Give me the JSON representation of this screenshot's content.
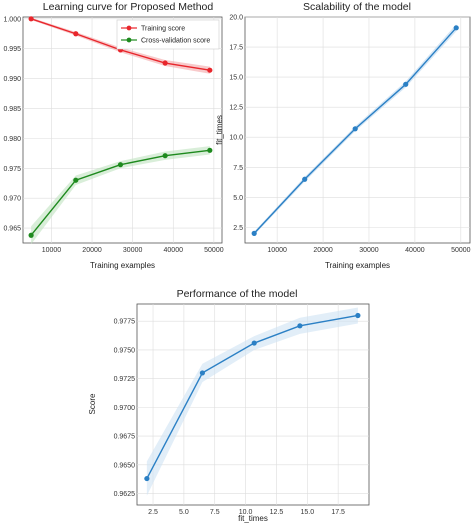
{
  "chart_data": [
    {
      "id": "learning",
      "type": "line",
      "title": "Learning curve for Proposed Method",
      "xlabel": "Training examples",
      "ylabel": "",
      "x": [
        5000,
        16000,
        27000,
        38000,
        49000
      ],
      "xlim": [
        3000,
        52000
      ],
      "xticks": [
        10000,
        20000,
        30000,
        40000,
        50000
      ],
      "xtick_labels": [
        "10000",
        "20000",
        "30000",
        "40000",
        "50000"
      ],
      "ylim": [
        0.9625,
        1.0003
      ],
      "yticks": [
        0.965,
        0.97,
        0.975,
        0.98,
        0.985,
        0.99,
        0.995,
        1.0
      ],
      "ytick_labels": [
        "0.965",
        "0.970",
        "0.975",
        "0.980",
        "0.985",
        "0.990",
        "0.995",
        "1.000"
      ],
      "grid": true,
      "legend_position": "top-right",
      "series": [
        {
          "name": "Training score",
          "color": "#e8262c",
          "band_color": "#f4a6a8",
          "values": [
            1.0,
            0.9975,
            0.9948,
            0.9926,
            0.9914
          ],
          "band": [
            0.0002,
            0.0003,
            0.0004,
            0.0005,
            0.0006
          ]
        },
        {
          "name": "Cross-validation score",
          "color": "#1e8a1e",
          "band_color": "#bfe3bf",
          "values": [
            0.9638,
            0.973,
            0.9756,
            0.9771,
            0.978
          ],
          "band": [
            0.0015,
            0.0008,
            0.0006,
            0.0007,
            0.0007
          ]
        }
      ]
    },
    {
      "id": "scalability",
      "type": "line",
      "title": "Scalability of the model",
      "xlabel": "Training examples",
      "ylabel": "fit_times",
      "x": [
        5000,
        16000,
        27000,
        38000,
        49000
      ],
      "xlim": [
        3000,
        52000
      ],
      "xticks": [
        10000,
        20000,
        30000,
        40000,
        50000
      ],
      "xtick_labels": [
        "10000",
        "20000",
        "30000",
        "40000",
        "50000"
      ],
      "ylim": [
        1.2,
        20.0
      ],
      "yticks": [
        2.5,
        5.0,
        7.5,
        10.0,
        12.5,
        15.0,
        17.5,
        20.0
      ],
      "ytick_labels": [
        "2.5",
        "5.0",
        "7.5",
        "10.0",
        "12.5",
        "15.0",
        "17.5",
        "20.0"
      ],
      "grid": true,
      "series": [
        {
          "color": "#2b80c5",
          "band_color": "#b9d6ef",
          "values": [
            2.0,
            6.5,
            10.7,
            14.4,
            19.1
          ],
          "band": [
            0.15,
            0.2,
            0.2,
            0.25,
            0.3
          ]
        }
      ]
    },
    {
      "id": "performance",
      "type": "line",
      "title": "Performance of the model",
      "xlabel": "fit_times",
      "ylabel": "Score",
      "x": [
        2.0,
        6.5,
        10.7,
        14.4,
        19.1
      ],
      "xlim": [
        1.2,
        20.0
      ],
      "xticks": [
        2.5,
        5.0,
        7.5,
        10.0,
        12.5,
        15.0,
        17.5
      ],
      "xtick_labels": [
        "2.5",
        "5.0",
        "7.5",
        "10.0",
        "12.5",
        "15.0",
        "17.5"
      ],
      "ylim": [
        0.9615,
        0.979
      ],
      "yticks": [
        0.9625,
        0.965,
        0.9675,
        0.97,
        0.9725,
        0.975,
        0.9775
      ],
      "ytick_labels": [
        "0.9625",
        "0.9650",
        "0.9675",
        "0.9700",
        "0.9725",
        "0.9750",
        "0.9775"
      ],
      "grid": true,
      "series": [
        {
          "color": "#2b80c5",
          "band_color": "#cfe2f3",
          "values": [
            0.9638,
            0.973,
            0.9756,
            0.9771,
            0.978
          ],
          "band": [
            0.0015,
            0.0008,
            0.0006,
            0.0007,
            0.0007
          ]
        }
      ]
    }
  ]
}
